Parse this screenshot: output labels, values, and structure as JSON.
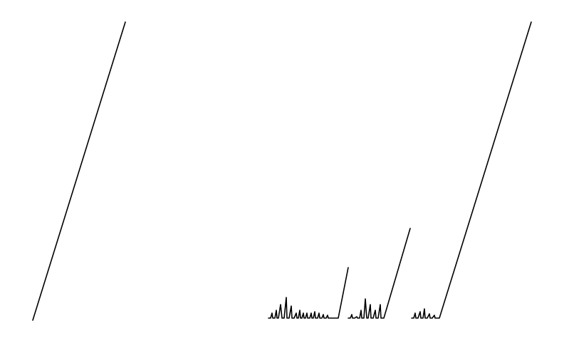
{
  "figure": {
    "description_label": "",
    "stroke_color": "#000000",
    "background_color": "#ffffff"
  },
  "baseline_level": 0,
  "strokes": [
    {
      "id": "stroke-1",
      "rise": 1.0
    },
    {
      "id": "tick-a1",
      "rise": 0.02
    },
    {
      "id": "tick-a2",
      "rise": 0.03
    },
    {
      "id": "tick-a3",
      "rise": 0.05
    },
    {
      "id": "tick-a4",
      "rise": 0.08
    },
    {
      "id": "tick-a5",
      "rise": 0.06
    },
    {
      "id": "tick-a6",
      "rise": 0.04
    },
    {
      "id": "tick-a7",
      "rise": 0.03
    },
    {
      "id": "tick-a8",
      "rise": 0.04
    },
    {
      "id": "tick-a9",
      "rise": 0.03
    },
    {
      "id": "tick-a10",
      "rise": 0.03
    },
    {
      "id": "tick-a11",
      "rise": 0.03
    },
    {
      "id": "tick-a12",
      "rise": 0.02
    },
    {
      "id": "tick-a13",
      "rise": 0.02
    },
    {
      "id": "stroke-2",
      "rise": 0.18
    },
    {
      "id": "tick-b1",
      "rise": 0.02
    },
    {
      "id": "tick-b2",
      "rise": 0.03
    },
    {
      "id": "tick-b3",
      "rise": 0.05
    },
    {
      "id": "tick-b4",
      "rise": 0.06
    },
    {
      "id": "tick-b5",
      "rise": 0.04
    },
    {
      "id": "stroke-3",
      "rise": 0.31
    },
    {
      "id": "tick-c1",
      "rise": 0.02
    },
    {
      "id": "tick-c2",
      "rise": 0.03
    },
    {
      "id": "tick-c3",
      "rise": 0.04
    },
    {
      "id": "tick-c4",
      "rise": 0.03
    },
    {
      "id": "stroke-4",
      "rise": 1.0
    }
  ]
}
